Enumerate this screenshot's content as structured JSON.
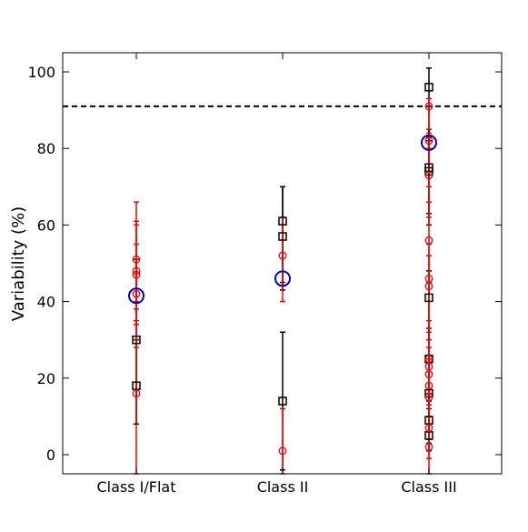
{
  "chart_data": {
    "type": "scatter",
    "title": "",
    "xlabel": "",
    "ylabel": "Variability (%)",
    "categories": [
      "Class I/Flat",
      "Class II",
      "Class III"
    ],
    "ylim": [
      -5,
      105
    ],
    "yticks": [
      0,
      20,
      40,
      60,
      80,
      100
    ],
    "grid": false,
    "legend": "none",
    "reference_line": {
      "y": 91,
      "style": "dashed",
      "color": "#000000"
    },
    "colors": {
      "black": "#000000",
      "red": "#ff0000",
      "blue": "#0000cc"
    },
    "series": [
      {
        "marker": "square",
        "color": "#000000",
        "points": [
          {
            "category": "Class I/Flat",
            "y": 30,
            "low": 8,
            "high": 51
          },
          {
            "category": "Class I/Flat",
            "y": 18,
            "low": 8,
            "high": 30
          },
          {
            "category": "Class II",
            "y": 61,
            "low": 43,
            "high": 70
          },
          {
            "category": "Class II",
            "y": 57,
            "low": 45,
            "high": 70
          },
          {
            "category": "Class II",
            "y": 14,
            "low": -4,
            "high": 32
          },
          {
            "category": "Class III",
            "y": 96,
            "low": 82,
            "high": 101
          },
          {
            "category": "Class III",
            "y": 75,
            "low": 63,
            "high": 85
          },
          {
            "category": "Class III",
            "y": 74,
            "low": 60,
            "high": 83
          },
          {
            "category": "Class III",
            "y": 41,
            "low": 30,
            "high": 48
          },
          {
            "category": "Class III",
            "y": 25,
            "low": 14,
            "high": 33
          },
          {
            "category": "Class III",
            "y": 16,
            "low": 8,
            "high": 26
          },
          {
            "category": "Class III",
            "y": 9,
            "low": 3,
            "high": 17
          },
          {
            "category": "Class III",
            "y": 5,
            "low": 1,
            "high": 12
          }
        ]
      },
      {
        "marker": "circle",
        "color": "#ff0000",
        "points": [
          {
            "category": "Class I/Flat",
            "y": 51,
            "low": 38,
            "high": 61
          },
          {
            "category": "Class I/Flat",
            "y": 48,
            "low": 35,
            "high": 60
          },
          {
            "category": "Class I/Flat",
            "y": 47,
            "low": 34,
            "high": 66
          },
          {
            "category": "Class I/Flat",
            "y": 42,
            "low": 28,
            "high": 55
          },
          {
            "category": "Class I/Flat",
            "y": 16,
            "low": -5,
            "high": 40
          },
          {
            "category": "Class II",
            "y": 52,
            "low": 40,
            "high": 62
          },
          {
            "category": "Class II",
            "y": 1,
            "low": -5,
            "high": 12
          },
          {
            "category": "Class III",
            "y": 91,
            "low": 85,
            "high": 93
          },
          {
            "category": "Class III",
            "y": 82,
            "low": 70,
            "high": 84
          },
          {
            "category": "Class III",
            "y": 73,
            "low": 62,
            "high": 80
          },
          {
            "category": "Class III",
            "y": 56,
            "low": 45,
            "high": 66
          },
          {
            "category": "Class III",
            "y": 46,
            "low": 32,
            "high": 55
          },
          {
            "category": "Class III",
            "y": 44,
            "low": 30,
            "high": 52
          },
          {
            "category": "Class III",
            "y": 25,
            "low": 13,
            "high": 35
          },
          {
            "category": "Class III",
            "y": 23,
            "low": 10,
            "high": 33
          },
          {
            "category": "Class III",
            "y": 21,
            "low": 8,
            "high": 30
          },
          {
            "category": "Class III",
            "y": 18,
            "low": 6,
            "high": 28
          },
          {
            "category": "Class III",
            "y": 15,
            "low": 4,
            "high": 25
          },
          {
            "category": "Class III",
            "y": 7,
            "low": -1,
            "high": 16
          },
          {
            "category": "Class III",
            "y": 2,
            "low": -5,
            "high": 10
          }
        ]
      },
      {
        "marker": "circle-large",
        "color": "#0000cc",
        "points": [
          {
            "category": "Class I/Flat",
            "y": 41.5
          },
          {
            "category": "Class II",
            "y": 46
          },
          {
            "category": "Class III",
            "y": 81.5
          }
        ]
      }
    ]
  }
}
